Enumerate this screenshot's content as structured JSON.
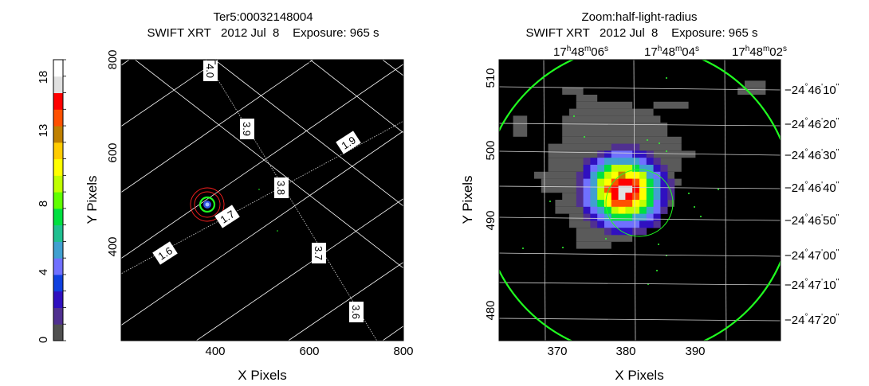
{
  "left_panel": {
    "title_line1": "Ter5:00032148004",
    "title_line2": "SWIFT XRT   2012 Jul  8    Exposure: 965 s",
    "xlabel": "X Pixels",
    "ylabel": "Y Pixels",
    "x_ticks": [
      "400",
      "600",
      "800"
    ],
    "y_ticks": [
      "400",
      "600",
      "800"
    ],
    "grid_labels": [
      "4.0",
      "3.9",
      "1.9",
      "3.8",
      "1.7",
      "1.6",
      "3.7",
      "3.6"
    ]
  },
  "right_panel": {
    "title_line1": "Zoom:half-light-radius",
    "title_line2": "SWIFT XRT   2012 Jul  8    Exposure: 965 s",
    "xlabel": "X Pixels",
    "ylabel": "Y Pixels",
    "x_ticks": [
      "370",
      "380",
      "390"
    ],
    "y_ticks": [
      "480",
      "490",
      "500",
      "510"
    ],
    "ra_labels": [
      {
        "h": "17",
        "m": "48",
        "s": "06"
      },
      {
        "h": "17",
        "m": "48",
        "s": "04"
      },
      {
        "h": "17",
        "m": "48",
        "s": "02"
      }
    ],
    "dec_labels": [
      {
        "d": "−24",
        "m": "46",
        "s": "10"
      },
      {
        "d": "−24",
        "m": "46",
        "s": "20"
      },
      {
        "d": "−24",
        "m": "46",
        "s": "30"
      },
      {
        "d": "−24",
        "m": "46",
        "s": "40"
      },
      {
        "d": "−24",
        "m": "46",
        "s": "50"
      },
      {
        "d": "−24",
        "m": "47",
        "s": "00"
      },
      {
        "d": "−24",
        "m": "47",
        "s": "10"
      },
      {
        "d": "−24",
        "m": "47",
        "s": "20"
      }
    ]
  },
  "colorbar": {
    "tick_labels": [
      "0",
      "4",
      "8",
      "13",
      "18"
    ],
    "colors": [
      "#505050",
      "#503090",
      "#3010c0",
      "#1040e0",
      "#7070ff",
      "#40a0d0",
      "#20c090",
      "#00e040",
      "#60ff00",
      "#c0ff00",
      "#ffff00",
      "#ffcc00",
      "#c08000",
      "#ff5000",
      "#ff0000",
      "#e0e0e0",
      "#ffffff"
    ]
  }
}
